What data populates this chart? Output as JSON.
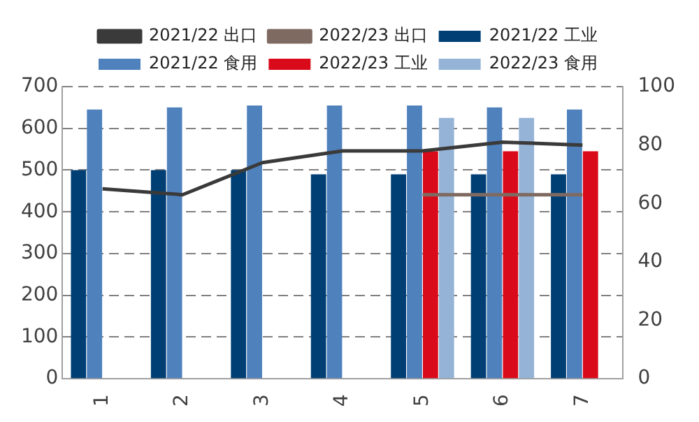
{
  "chart_data": {
    "type": "bar",
    "categories": [
      "1",
      "2",
      "3",
      "4",
      "5",
      "6",
      "7"
    ],
    "series": [
      {
        "name": "2021/22 工业",
        "color": "#003f74",
        "values": [
          500,
          500,
          500,
          490,
          490,
          490,
          490
        ]
      },
      {
        "name": "2021/22 食用",
        "color": "#4f81bd",
        "values": [
          645,
          650,
          655,
          655,
          655,
          650,
          645
        ]
      },
      {
        "name": "2022/23 工业",
        "color": "#d90b1a",
        "values": [
          null,
          null,
          null,
          null,
          545,
          545,
          545
        ]
      },
      {
        "name": "2022/23 食用",
        "color": "#95b3d7",
        "values": [
          null,
          null,
          null,
          null,
          625,
          625,
          null
        ]
      },
      {
        "name": "2021/22 出口",
        "type": "line",
        "axis": "y2",
        "color": "#3a3a3a",
        "values": [
          65,
          63,
          74,
          78,
          78,
          81,
          80
        ]
      },
      {
        "name": "2022/23 出口",
        "type": "line",
        "axis": "y2",
        "color": "#7f6a62",
        "values": [
          null,
          null,
          null,
          null,
          63,
          63,
          63
        ]
      }
    ],
    "ylim": [
      0,
      700
    ],
    "yticks": [
      0,
      100,
      200,
      300,
      400,
      500,
      600,
      700
    ],
    "y2lim": [
      0,
      100
    ],
    "y2ticks": [
      0,
      20,
      40,
      60,
      80,
      100
    ],
    "grid": "y",
    "legend": "top",
    "marker": "none"
  }
}
